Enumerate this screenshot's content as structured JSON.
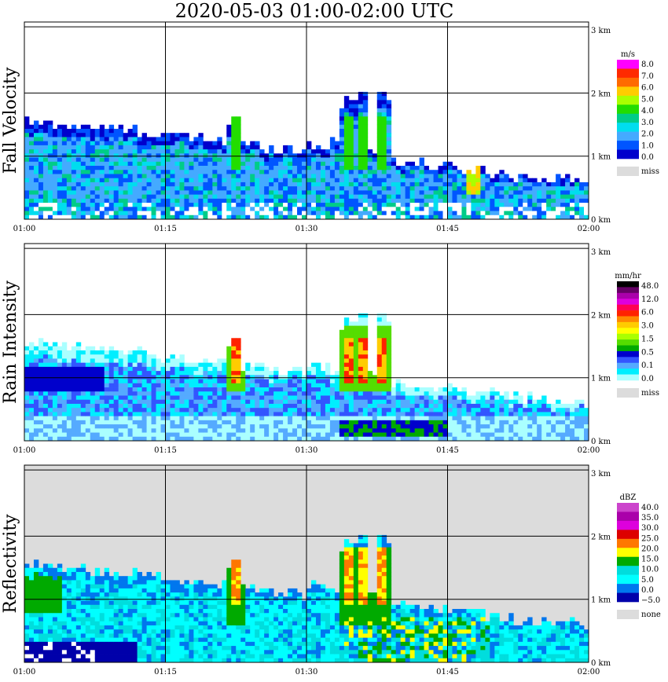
{
  "title": "2020-05-03   01:00-02:00 UTC",
  "colors": {
    "frame": "#000000",
    "gridline": "#000000",
    "missing_bg": "#dcdcdc"
  },
  "chart_data": [
    {
      "type": "heatmap",
      "ylabel": "Fall Velocity",
      "x_ticks": [
        "01:00",
        "01:15",
        "01:30",
        "01:45",
        "02:00"
      ],
      "y_ticks": [
        "0 km",
        "1 km",
        "2 km",
        "3 km"
      ],
      "ylim": [
        0,
        3.05
      ],
      "background": "white",
      "colorbar": {
        "unit": "m/s",
        "labels": [
          "8.0",
          "7.0",
          "6.0",
          "5.0",
          "4.0",
          "3.0",
          "2.0",
          "1.0",
          "0.0"
        ],
        "colors": [
          "#ff00ff",
          "#ff2a00",
          "#ff6a00",
          "#ffcc00",
          "#aaff00",
          "#22dd00",
          "#00cc88",
          "#00ddee",
          "#44aaff",
          "#0055ff",
          "#0000cc"
        ],
        "missing_label": "miss",
        "missing_color": "#dcdcdc"
      }
    },
    {
      "type": "heatmap",
      "ylabel": "Rain Intensity",
      "x_ticks": [
        "01:00",
        "01:15",
        "01:30",
        "01:45",
        "02:00"
      ],
      "y_ticks": [
        "0 km",
        "1 km",
        "2 km",
        "3 km"
      ],
      "ylim": [
        0,
        3.05
      ],
      "background": "white",
      "colorbar": {
        "unit": "mm/hr",
        "labels": [
          "48.0",
          "12.0",
          "6.0",
          "3.0",
          "1.5",
          "0.5",
          "0.1",
          "0.0"
        ],
        "colors": [
          "#000000",
          "#660066",
          "#aa00aa",
          "#dd00dd",
          "#ff0055",
          "#ff2200",
          "#ff8800",
          "#ffcc00",
          "#ffff00",
          "#aaff00",
          "#55dd00",
          "#00aa00",
          "#0000cc",
          "#3355ff",
          "#55aaff",
          "#00eeff",
          "#aaffff"
        ],
        "missing_label": "miss",
        "missing_color": "#dcdcdc"
      }
    },
    {
      "type": "heatmap",
      "ylabel": "Reflectivity",
      "x_ticks": [
        "01:00",
        "01:15",
        "01:30",
        "01:45",
        "02:00"
      ],
      "y_ticks": [
        "0 km",
        "1 km",
        "2 km",
        "3 km"
      ],
      "ylim": [
        0,
        3.05
      ],
      "background": "gray",
      "colorbar": {
        "unit": "dBZ",
        "labels": [
          "40.0",
          "35.0",
          "30.0",
          "25.0",
          "20.0",
          "15.0",
          "10.0",
          "5.0",
          "0.0",
          "−5.0"
        ],
        "colors": [
          "#cc44cc",
          "#aa00aa",
          "#dd00dd",
          "#dd0000",
          "#ff7700",
          "#ffff00",
          "#00aa00",
          "#00dddd",
          "#00ffff",
          "#0077ee",
          "#0000aa"
        ],
        "missing_label": "none",
        "missing_color": "#dcdcdc"
      }
    }
  ]
}
